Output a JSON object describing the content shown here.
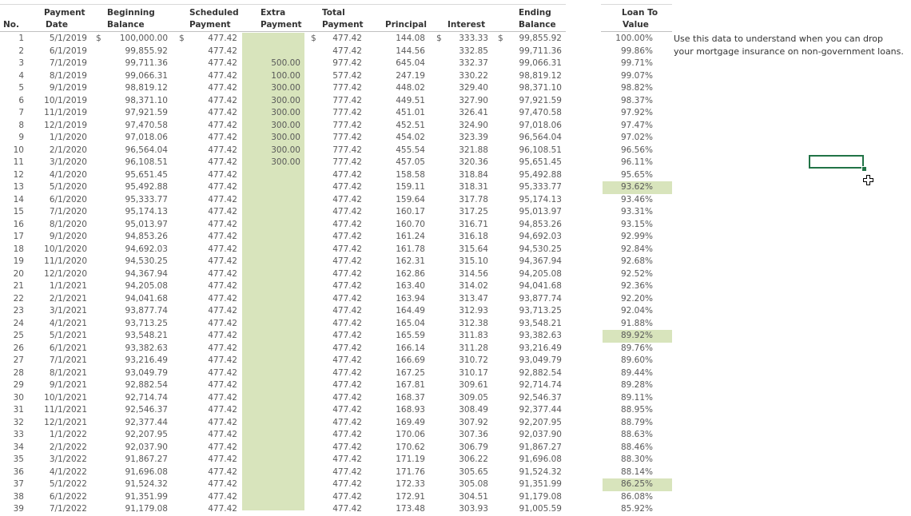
{
  "headers": {
    "no": "No.",
    "payment_date": [
      "Payment",
      "Date"
    ],
    "beginning_balance": [
      "Beginning",
      "Balance"
    ],
    "scheduled_payment": [
      "Scheduled",
      "Payment"
    ],
    "extra_payment": [
      "Extra",
      "Payment"
    ],
    "total_payment": [
      "Total",
      "Payment"
    ],
    "principal": "Principal",
    "interest": "Interest",
    "ending_balance": [
      "Ending",
      "Balance"
    ],
    "loan_to_value": [
      "Loan To",
      "Value"
    ]
  },
  "note": [
    "Use this data to understand when you can drop",
    "your mortgage insurance on non-government loans."
  ],
  "currency": "$",
  "rows": [
    {
      "no": "1",
      "date": "5/1/2019",
      "begin": "100,000.00",
      "sched": "477.42",
      "extra": "",
      "total": "477.42",
      "principal": "144.08",
      "interest": "333.33",
      "end": "99,855.92",
      "ltv": "100.00%",
      "hl": false
    },
    {
      "no": "2",
      "date": "6/1/2019",
      "begin": "99,855.92",
      "sched": "477.42",
      "extra": "",
      "total": "477.42",
      "principal": "144.56",
      "interest": "332.85",
      "end": "99,711.36",
      "ltv": "99.86%",
      "hl": false
    },
    {
      "no": "3",
      "date": "7/1/2019",
      "begin": "99,711.36",
      "sched": "477.42",
      "extra": "500.00",
      "total": "977.42",
      "principal": "645.04",
      "interest": "332.37",
      "end": "99,066.31",
      "ltv": "99.71%",
      "hl": false
    },
    {
      "no": "4",
      "date": "8/1/2019",
      "begin": "99,066.31",
      "sched": "477.42",
      "extra": "100.00",
      "total": "577.42",
      "principal": "247.19",
      "interest": "330.22",
      "end": "98,819.12",
      "ltv": "99.07%",
      "hl": false
    },
    {
      "no": "5",
      "date": "9/1/2019",
      "begin": "98,819.12",
      "sched": "477.42",
      "extra": "300.00",
      "total": "777.42",
      "principal": "448.02",
      "interest": "329.40",
      "end": "98,371.10",
      "ltv": "98.82%",
      "hl": false
    },
    {
      "no": "6",
      "date": "10/1/2019",
      "begin": "98,371.10",
      "sched": "477.42",
      "extra": "300.00",
      "total": "777.42",
      "principal": "449.51",
      "interest": "327.90",
      "end": "97,921.59",
      "ltv": "98.37%",
      "hl": false
    },
    {
      "no": "7",
      "date": "11/1/2019",
      "begin": "97,921.59",
      "sched": "477.42",
      "extra": "300.00",
      "total": "777.42",
      "principal": "451.01",
      "interest": "326.41",
      "end": "97,470.58",
      "ltv": "97.92%",
      "hl": false
    },
    {
      "no": "8",
      "date": "12/1/2019",
      "begin": "97,470.58",
      "sched": "477.42",
      "extra": "300.00",
      "total": "777.42",
      "principal": "452.51",
      "interest": "324.90",
      "end": "97,018.06",
      "ltv": "97.47%",
      "hl": false
    },
    {
      "no": "9",
      "date": "1/1/2020",
      "begin": "97,018.06",
      "sched": "477.42",
      "extra": "300.00",
      "total": "777.42",
      "principal": "454.02",
      "interest": "323.39",
      "end": "96,564.04",
      "ltv": "97.02%",
      "hl": false
    },
    {
      "no": "10",
      "date": "2/1/2020",
      "begin": "96,564.04",
      "sched": "477.42",
      "extra": "300.00",
      "total": "777.42",
      "principal": "455.54",
      "interest": "321.88",
      "end": "96,108.51",
      "ltv": "96.56%",
      "hl": false
    },
    {
      "no": "11",
      "date": "3/1/2020",
      "begin": "96,108.51",
      "sched": "477.42",
      "extra": "300.00",
      "total": "777.42",
      "principal": "457.05",
      "interest": "320.36",
      "end": "95,651.45",
      "ltv": "96.11%",
      "hl": false
    },
    {
      "no": "12",
      "date": "4/1/2020",
      "begin": "95,651.45",
      "sched": "477.42",
      "extra": "",
      "total": "477.42",
      "principal": "158.58",
      "interest": "318.84",
      "end": "95,492.88",
      "ltv": "95.65%",
      "hl": false
    },
    {
      "no": "13",
      "date": "5/1/2020",
      "begin": "95,492.88",
      "sched": "477.42",
      "extra": "",
      "total": "477.42",
      "principal": "159.11",
      "interest": "318.31",
      "end": "95,333.77",
      "ltv": "93.62%",
      "hl": true
    },
    {
      "no": "14",
      "date": "6/1/2020",
      "begin": "95,333.77",
      "sched": "477.42",
      "extra": "",
      "total": "477.42",
      "principal": "159.64",
      "interest": "317.78",
      "end": "95,174.13",
      "ltv": "93.46%",
      "hl": false
    },
    {
      "no": "15",
      "date": "7/1/2020",
      "begin": "95,174.13",
      "sched": "477.42",
      "extra": "",
      "total": "477.42",
      "principal": "160.17",
      "interest": "317.25",
      "end": "95,013.97",
      "ltv": "93.31%",
      "hl": false
    },
    {
      "no": "16",
      "date": "8/1/2020",
      "begin": "95,013.97",
      "sched": "477.42",
      "extra": "",
      "total": "477.42",
      "principal": "160.70",
      "interest": "316.71",
      "end": "94,853.26",
      "ltv": "93.15%",
      "hl": false
    },
    {
      "no": "17",
      "date": "9/1/2020",
      "begin": "94,853.26",
      "sched": "477.42",
      "extra": "",
      "total": "477.42",
      "principal": "161.24",
      "interest": "316.18",
      "end": "94,692.03",
      "ltv": "92.99%",
      "hl": false
    },
    {
      "no": "18",
      "date": "10/1/2020",
      "begin": "94,692.03",
      "sched": "477.42",
      "extra": "",
      "total": "477.42",
      "principal": "161.78",
      "interest": "315.64",
      "end": "94,530.25",
      "ltv": "92.84%",
      "hl": false
    },
    {
      "no": "19",
      "date": "11/1/2020",
      "begin": "94,530.25",
      "sched": "477.42",
      "extra": "",
      "total": "477.42",
      "principal": "162.31",
      "interest": "315.10",
      "end": "94,367.94",
      "ltv": "92.68%",
      "hl": false
    },
    {
      "no": "20",
      "date": "12/1/2020",
      "begin": "94,367.94",
      "sched": "477.42",
      "extra": "",
      "total": "477.42",
      "principal": "162.86",
      "interest": "314.56",
      "end": "94,205.08",
      "ltv": "92.52%",
      "hl": false
    },
    {
      "no": "21",
      "date": "1/1/2021",
      "begin": "94,205.08",
      "sched": "477.42",
      "extra": "",
      "total": "477.42",
      "principal": "163.40",
      "interest": "314.02",
      "end": "94,041.68",
      "ltv": "92.36%",
      "hl": false
    },
    {
      "no": "22",
      "date": "2/1/2021",
      "begin": "94,041.68",
      "sched": "477.42",
      "extra": "",
      "total": "477.42",
      "principal": "163.94",
      "interest": "313.47",
      "end": "93,877.74",
      "ltv": "92.20%",
      "hl": false
    },
    {
      "no": "23",
      "date": "3/1/2021",
      "begin": "93,877.74",
      "sched": "477.42",
      "extra": "",
      "total": "477.42",
      "principal": "164.49",
      "interest": "312.93",
      "end": "93,713.25",
      "ltv": "92.04%",
      "hl": false
    },
    {
      "no": "24",
      "date": "4/1/2021",
      "begin": "93,713.25",
      "sched": "477.42",
      "extra": "",
      "total": "477.42",
      "principal": "165.04",
      "interest": "312.38",
      "end": "93,548.21",
      "ltv": "91.88%",
      "hl": false
    },
    {
      "no": "25",
      "date": "5/1/2021",
      "begin": "93,548.21",
      "sched": "477.42",
      "extra": "",
      "total": "477.42",
      "principal": "165.59",
      "interest": "311.83",
      "end": "93,382.63",
      "ltv": "89.92%",
      "hl": true
    },
    {
      "no": "26",
      "date": "6/1/2021",
      "begin": "93,382.63",
      "sched": "477.42",
      "extra": "",
      "total": "477.42",
      "principal": "166.14",
      "interest": "311.28",
      "end": "93,216.49",
      "ltv": "89.76%",
      "hl": false
    },
    {
      "no": "27",
      "date": "7/1/2021",
      "begin": "93,216.49",
      "sched": "477.42",
      "extra": "",
      "total": "477.42",
      "principal": "166.69",
      "interest": "310.72",
      "end": "93,049.79",
      "ltv": "89.60%",
      "hl": false
    },
    {
      "no": "28",
      "date": "8/1/2021",
      "begin": "93,049.79",
      "sched": "477.42",
      "extra": "",
      "total": "477.42",
      "principal": "167.25",
      "interest": "310.17",
      "end": "92,882.54",
      "ltv": "89.44%",
      "hl": false
    },
    {
      "no": "29",
      "date": "9/1/2021",
      "begin": "92,882.54",
      "sched": "477.42",
      "extra": "",
      "total": "477.42",
      "principal": "167.81",
      "interest": "309.61",
      "end": "92,714.74",
      "ltv": "89.28%",
      "hl": false
    },
    {
      "no": "30",
      "date": "10/1/2021",
      "begin": "92,714.74",
      "sched": "477.42",
      "extra": "",
      "total": "477.42",
      "principal": "168.37",
      "interest": "309.05",
      "end": "92,546.37",
      "ltv": "89.11%",
      "hl": false
    },
    {
      "no": "31",
      "date": "11/1/2021",
      "begin": "92,546.37",
      "sched": "477.42",
      "extra": "",
      "total": "477.42",
      "principal": "168.93",
      "interest": "308.49",
      "end": "92,377.44",
      "ltv": "88.95%",
      "hl": false
    },
    {
      "no": "32",
      "date": "12/1/2021",
      "begin": "92,377.44",
      "sched": "477.42",
      "extra": "",
      "total": "477.42",
      "principal": "169.49",
      "interest": "307.92",
      "end": "92,207.95",
      "ltv": "88.79%",
      "hl": false
    },
    {
      "no": "33",
      "date": "1/1/2022",
      "begin": "92,207.95",
      "sched": "477.42",
      "extra": "",
      "total": "477.42",
      "principal": "170.06",
      "interest": "307.36",
      "end": "92,037.90",
      "ltv": "88.63%",
      "hl": false
    },
    {
      "no": "34",
      "date": "2/1/2022",
      "begin": "92,037.90",
      "sched": "477.42",
      "extra": "",
      "total": "477.42",
      "principal": "170.62",
      "interest": "306.79",
      "end": "91,867.27",
      "ltv": "88.46%",
      "hl": false
    },
    {
      "no": "35",
      "date": "3/1/2022",
      "begin": "91,867.27",
      "sched": "477.42",
      "extra": "",
      "total": "477.42",
      "principal": "171.19",
      "interest": "306.22",
      "end": "91,696.08",
      "ltv": "88.30%",
      "hl": false
    },
    {
      "no": "36",
      "date": "4/1/2022",
      "begin": "91,696.08",
      "sched": "477.42",
      "extra": "",
      "total": "477.42",
      "principal": "171.76",
      "interest": "305.65",
      "end": "91,524.32",
      "ltv": "88.14%",
      "hl": false
    },
    {
      "no": "37",
      "date": "5/1/2022",
      "begin": "91,524.32",
      "sched": "477.42",
      "extra": "",
      "total": "477.42",
      "principal": "172.33",
      "interest": "305.08",
      "end": "91,351.99",
      "ltv": "86.25%",
      "hl": true
    },
    {
      "no": "38",
      "date": "6/1/2022",
      "begin": "91,351.99",
      "sched": "477.42",
      "extra": "",
      "total": "477.42",
      "principal": "172.91",
      "interest": "304.51",
      "end": "91,179.08",
      "ltv": "86.08%",
      "hl": false
    },
    {
      "no": "39",
      "date": "7/1/2022",
      "begin": "91,179.08",
      "sched": "477.42",
      "extra": "",
      "total": "477.42",
      "principal": "173.48",
      "interest": "303.93",
      "end": "91,005.59",
      "ltv": "85.92%",
      "hl": false
    }
  ],
  "colors": {
    "highlight": "#d8e4bc",
    "selection": "#217346"
  }
}
